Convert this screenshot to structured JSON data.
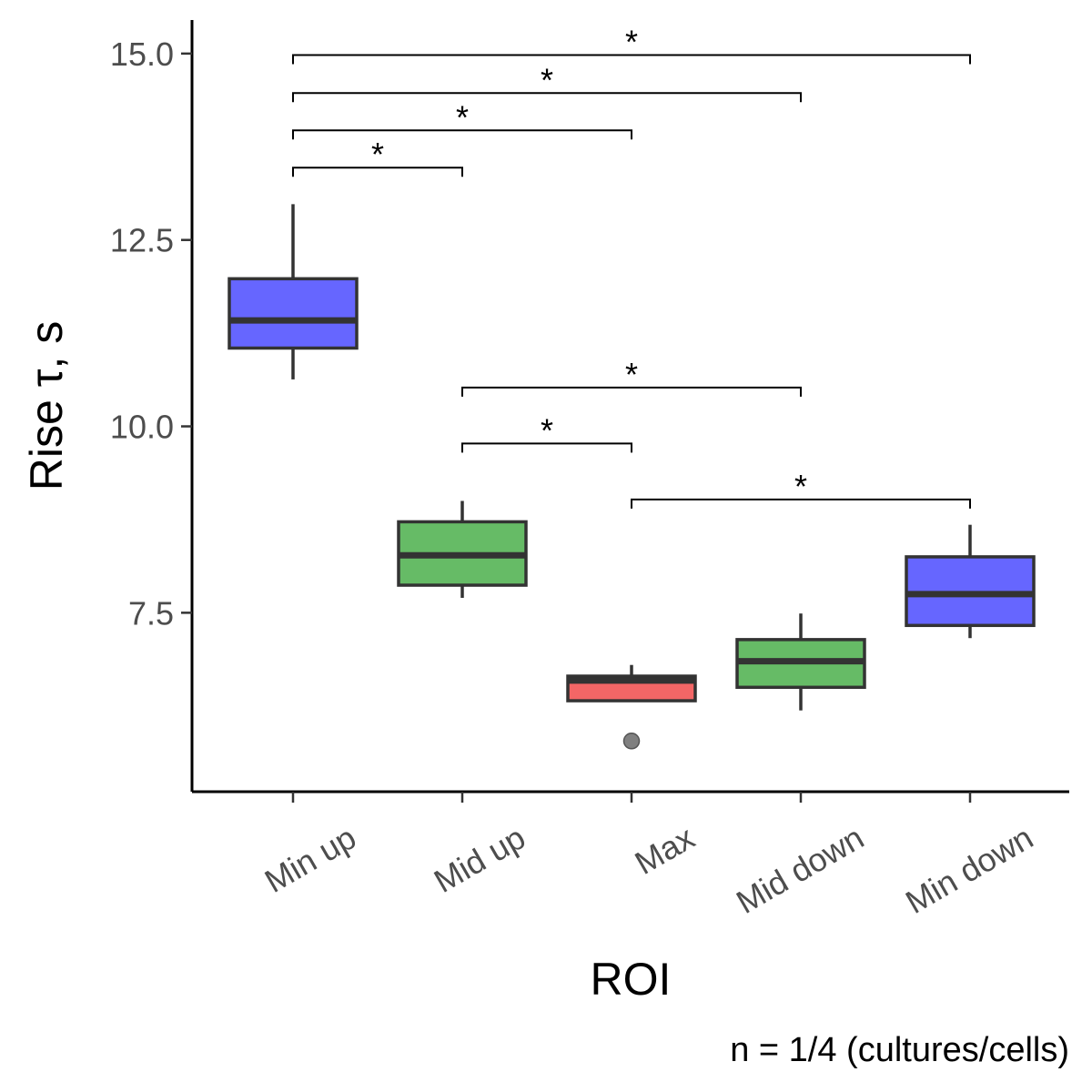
{
  "chart_data": {
    "type": "boxplot",
    "xlabel": "ROI",
    "ylabel": "Rise τ, s",
    "caption": "n = 1/4 (cultures/cells)",
    "ylim": [
      5.1,
      15.45
    ],
    "yticks": [
      7.5,
      10.0,
      12.5,
      15.0
    ],
    "ytick_labels": [
      "7.5",
      "10.0",
      "12.5",
      "15.0"
    ],
    "grid": false,
    "legend": "none",
    "categories": [
      "Min up",
      "Mid up",
      "Max",
      "Mid down",
      "Min down"
    ],
    "boxes": [
      {
        "category": "Min up",
        "whisker_low": 10.63,
        "q1": 11.05,
        "median": 11.42,
        "q3": 11.98,
        "whisker_high": 12.98,
        "outliers": [],
        "color": "#6666ff"
      },
      {
        "category": "Mid up",
        "whisker_low": 7.7,
        "q1": 7.87,
        "median": 8.27,
        "q3": 8.72,
        "whisker_high": 9.0,
        "outliers": [],
        "color": "#66bb66"
      },
      {
        "category": "Max",
        "whisker_low": 6.32,
        "q1": 6.32,
        "median": 6.59,
        "q3": 6.65,
        "whisker_high": 6.8,
        "outliers": [
          5.78
        ],
        "color": "#f36666"
      },
      {
        "category": "Mid down",
        "whisker_low": 6.19,
        "q1": 6.5,
        "median": 6.85,
        "q3": 7.14,
        "whisker_high": 7.49,
        "outliers": [],
        "color": "#66bb66"
      },
      {
        "category": "Min down",
        "whisker_low": 7.16,
        "q1": 7.33,
        "median": 7.75,
        "q3": 8.25,
        "whisker_high": 8.68,
        "outliers": [],
        "color": "#6666ff"
      }
    ],
    "significance": [
      {
        "from": "Min up",
        "to": "Mid up",
        "y": 13.47,
        "label": "*"
      },
      {
        "from": "Min up",
        "to": "Max",
        "y": 13.97,
        "label": "*"
      },
      {
        "from": "Min up",
        "to": "Mid down",
        "y": 14.47,
        "label": "*"
      },
      {
        "from": "Min up",
        "to": "Min down",
        "y": 14.98,
        "label": "*"
      },
      {
        "from": "Mid up",
        "to": "Max",
        "y": 9.77,
        "label": "*"
      },
      {
        "from": "Mid up",
        "to": "Mid down",
        "y": 10.52,
        "label": "*"
      },
      {
        "from": "Max",
        "to": "Min down",
        "y": 9.02,
        "label": "*"
      }
    ],
    "colors": {
      "outline": "#333333",
      "median": "#333333",
      "outlier": "#808080",
      "axis": "#000000",
      "tick_text": "#4d4d4d"
    }
  }
}
